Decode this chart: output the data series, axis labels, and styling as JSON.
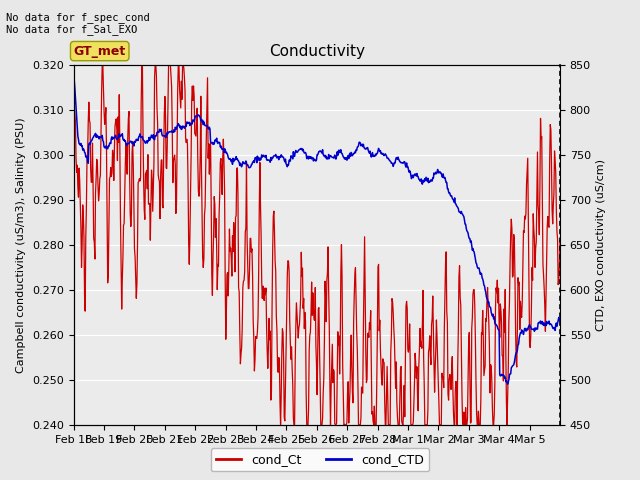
{
  "title": "Conductivity",
  "ylabel_left": "Campbell conductivity (uS/m3), Salinity (PSU)",
  "ylabel_right": "CTD, EXO conductivity (uS/cm)",
  "text_top_left": "No data for f_spec_cond\nNo data for f_Sal_EXO",
  "box_label": "GT_met",
  "ylim_left": [
    0.24,
    0.32
  ],
  "ylim_right": [
    450,
    850
  ],
  "xtick_labels": [
    "Feb 18",
    "Feb 19",
    "Feb 20",
    "Feb 21",
    "Feb 22",
    "Feb 23",
    "Feb 24",
    "Feb 25",
    "Feb 26",
    "Feb 27",
    "Feb 28",
    "Mar 1",
    "Mar 2",
    "Mar 3",
    "Mar 4",
    "Mar 5"
  ],
  "yticks_left": [
    0.24,
    0.25,
    0.26,
    0.27,
    0.28,
    0.29,
    0.3,
    0.31,
    0.32
  ],
  "yticks_right": [
    450,
    500,
    550,
    600,
    650,
    700,
    750,
    800,
    850
  ],
  "legend_labels": [
    "cond_Ct",
    "cond_CTD"
  ],
  "red_color": "#cc0000",
  "blue_color": "#0000cc",
  "bg_color": "#e8e8e8",
  "plot_bg_color": "#ebebeb"
}
